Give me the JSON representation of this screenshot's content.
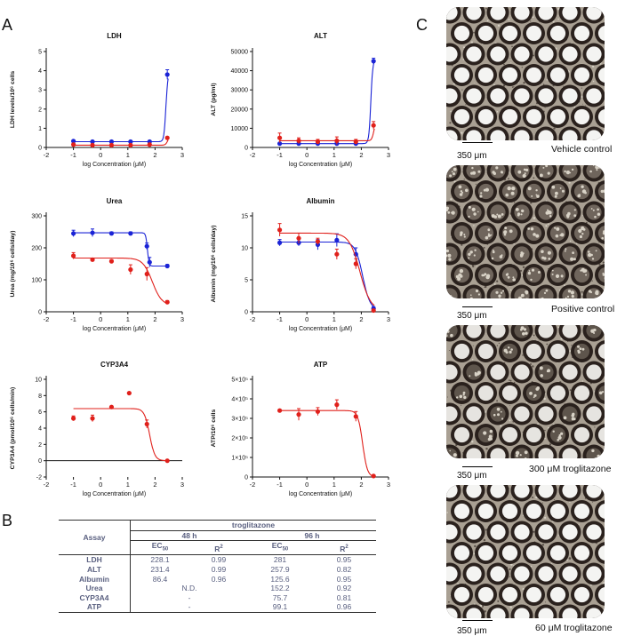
{
  "panels": {
    "a": "A",
    "b": "B",
    "c": "C"
  },
  "chart_data": [
    {
      "type": "scatter",
      "title": "LDH",
      "xlabel": "log Concentration (μM)",
      "ylabel": "LDH levels/10⁶ cells",
      "xlim": [
        -2,
        3
      ],
      "ylim": [
        0,
        5
      ],
      "xticks": [
        "-2",
        "-1",
        "0",
        "1",
        "2",
        "3"
      ],
      "yticks": [
        "0",
        "1",
        "2",
        "3",
        "4",
        "5"
      ],
      "series": [
        {
          "name": "blue",
          "color": "#1a23d6",
          "x": [
            -1,
            -0.3,
            0.4,
            1.1,
            1.8,
            2.45
          ],
          "y": [
            0.33,
            0.3,
            0.3,
            0.3,
            0.3,
            3.8
          ],
          "err": [
            0.05,
            0.05,
            0.05,
            0.05,
            0.05,
            0.25
          ]
        },
        {
          "name": "red",
          "color": "#e0201b",
          "x": [
            -1,
            -0.3,
            0.4,
            1.1,
            1.8,
            2.45
          ],
          "y": [
            0.15,
            0.12,
            0.12,
            0.12,
            0.15,
            0.5
          ],
          "err": [
            0.05,
            0.03,
            0.03,
            0.03,
            0.03,
            0.05
          ]
        }
      ]
    },
    {
      "type": "scatter",
      "title": "ALT",
      "xlabel": "log Concentration (μM)",
      "ylabel": "ALT (pg/ml)",
      "xlim": [
        -2,
        3
      ],
      "ylim": [
        0,
        50000
      ],
      "xticks": [
        "-2",
        "-1",
        "0",
        "1",
        "2",
        "3"
      ],
      "yticks": [
        "0",
        "10000",
        "20000",
        "30000",
        "40000",
        "50000"
      ],
      "series": [
        {
          "name": "blue",
          "color": "#1a23d6",
          "x": [
            -1,
            -0.3,
            0.4,
            1.1,
            1.8,
            2.45
          ],
          "y": [
            2000,
            2000,
            2000,
            2000,
            2000,
            45000
          ],
          "err": [
            500,
            500,
            500,
            500,
            500,
            1500
          ]
        },
        {
          "name": "red",
          "color": "#e0201b",
          "x": [
            -1,
            -0.3,
            0.4,
            1.1,
            1.8,
            2.45
          ],
          "y": [
            5000,
            3500,
            3000,
            3500,
            3000,
            11500
          ],
          "err": [
            2500,
            1500,
            1200,
            2000,
            1200,
            2000
          ]
        }
      ]
    },
    {
      "type": "scatter",
      "title": "Urea",
      "xlabel": "log Concentration (μM)",
      "ylabel": "Urea (mg/10⁶ cells/day)",
      "xlim": [
        -2,
        3
      ],
      "ylim": [
        0,
        300
      ],
      "xticks": [
        "-2",
        "-1",
        "0",
        "1",
        "2",
        "3"
      ],
      "yticks": [
        "0",
        "100",
        "200",
        "300"
      ],
      "series": [
        {
          "name": "blue",
          "color": "#1a23d6",
          "x": [
            -1,
            -0.3,
            0.4,
            1.1,
            1.7,
            1.8,
            2.45
          ],
          "y": [
            245,
            247,
            245,
            245,
            205,
            155,
            143
          ],
          "err": [
            10,
            12,
            5,
            5,
            10,
            15,
            5
          ]
        },
        {
          "name": "red",
          "color": "#e0201b",
          "x": [
            -1,
            -0.3,
            0.4,
            1.1,
            1.7,
            2.45
          ],
          "y": [
            175,
            163,
            158,
            132,
            118,
            30
          ],
          "err": [
            10,
            5,
            5,
            15,
            20,
            5
          ]
        }
      ]
    },
    {
      "type": "scatter",
      "title": "Albumin",
      "xlabel": "log Concentration (μM)",
      "ylabel": "Albumin (mg/10⁶ cells/day)",
      "xlim": [
        -2,
        3
      ],
      "ylim": [
        0,
        15
      ],
      "xticks": [
        "-2",
        "-1",
        "0",
        "1",
        "2",
        "3"
      ],
      "yticks": [
        "0",
        "5",
        "10",
        "15"
      ],
      "series": [
        {
          "name": "blue",
          "color": "#1a23d6",
          "x": [
            -1,
            -0.3,
            0.4,
            1.1,
            1.8,
            2.45
          ],
          "y": [
            10.8,
            10.8,
            10.5,
            11.2,
            9,
            0.5
          ],
          "err": [
            0.5,
            0.5,
            0.8,
            1,
            1,
            0.3
          ]
        },
        {
          "name": "red",
          "color": "#e0201b",
          "x": [
            -1,
            -0.3,
            0.4,
            1.1,
            1.8,
            2.45
          ],
          "y": [
            12.8,
            11.5,
            11,
            9,
            7.5,
            0.2
          ],
          "err": [
            1,
            0.8,
            0.5,
            0.8,
            0.8,
            0.2
          ]
        }
      ]
    },
    {
      "type": "scatter",
      "title": "CYP3A4",
      "xlabel": "log Concentration (μM)",
      "ylabel": "CYP3A4 (pmol/10⁶ cells/min)",
      "xlim": [
        -2,
        3
      ],
      "ylim": [
        -2,
        10
      ],
      "xticks": [
        "-2",
        "-1",
        "0",
        "1",
        "2",
        "3"
      ],
      "yticks": [
        "-2",
        "0",
        "2",
        "4",
        "6",
        "8",
        "10"
      ],
      "series": [
        {
          "name": "red",
          "color": "#e0201b",
          "x": [
            -1,
            -0.3,
            0.4,
            1.05,
            1.7,
            2.45
          ],
          "y": [
            5.2,
            5.2,
            6.6,
            8.3,
            4.5,
            0
          ],
          "err": [
            0.3,
            0.4,
            0.1,
            0.1,
            0.5,
            0.1
          ]
        }
      ]
    },
    {
      "type": "scatter",
      "title": "ATP",
      "xlabel": "log Concentration (μM)",
      "ylabel": "ATP/10⁶ cells",
      "xlim": [
        -2,
        3
      ],
      "ylim": [
        0,
        500000
      ],
      "xticks": [
        "-2",
        "-1",
        "0",
        "1",
        "2",
        "3"
      ],
      "yticks": [
        "0",
        "1×10⁵",
        "2×10⁵",
        "3×10⁵",
        "4×10⁵",
        "5×10⁵"
      ],
      "series": [
        {
          "name": "red",
          "color": "#e0201b",
          "x": [
            -1,
            -0.3,
            0.4,
            1.1,
            1.8,
            2.45
          ],
          "y": [
            340000,
            320000,
            335000,
            370000,
            310000,
            5000
          ],
          "err": [
            5000,
            30000,
            20000,
            25000,
            25000,
            3000
          ]
        }
      ]
    }
  ],
  "table": {
    "compound": "troglitazone",
    "assay_header": "Assay",
    "time_48": "48 h",
    "time_96": "96 h",
    "ec50": "EC",
    "ec50_sub": "50",
    "r2": "R",
    "r2_sup": "2",
    "rows": [
      {
        "assay": "LDH",
        "ec48": "228.1",
        "r48": "0.99",
        "ec96": "281",
        "r96": "0.95"
      },
      {
        "assay": "ALT",
        "ec48": "231.4",
        "r48": "0.99",
        "ec96": "257.9",
        "r96": "0.82"
      },
      {
        "assay": "Albumin",
        "ec48": "86.4",
        "r48": "0.96",
        "ec96": "125.6",
        "r96": "0.95"
      },
      {
        "assay": "Urea",
        "ec48": "N.D.",
        "r48": "",
        "ec96": "152.2",
        "r96": "0.92"
      },
      {
        "assay": "CYP3A4",
        "ec48": "-",
        "r48": "",
        "ec96": "75.7",
        "r96": "0.81"
      },
      {
        "assay": "ATP",
        "ec48": "-",
        "r48": "",
        "ec96": "99.1",
        "r96": "0.96"
      }
    ]
  },
  "micrographs": [
    {
      "caption": "Vehicle control",
      "scale": "350 μm"
    },
    {
      "caption": "Positive control",
      "scale": "350 μm"
    },
    {
      "caption": "300 μM troglitazone",
      "scale": "350 μm"
    },
    {
      "caption": "60 μM troglitazone",
      "scale": "350 μm"
    }
  ]
}
